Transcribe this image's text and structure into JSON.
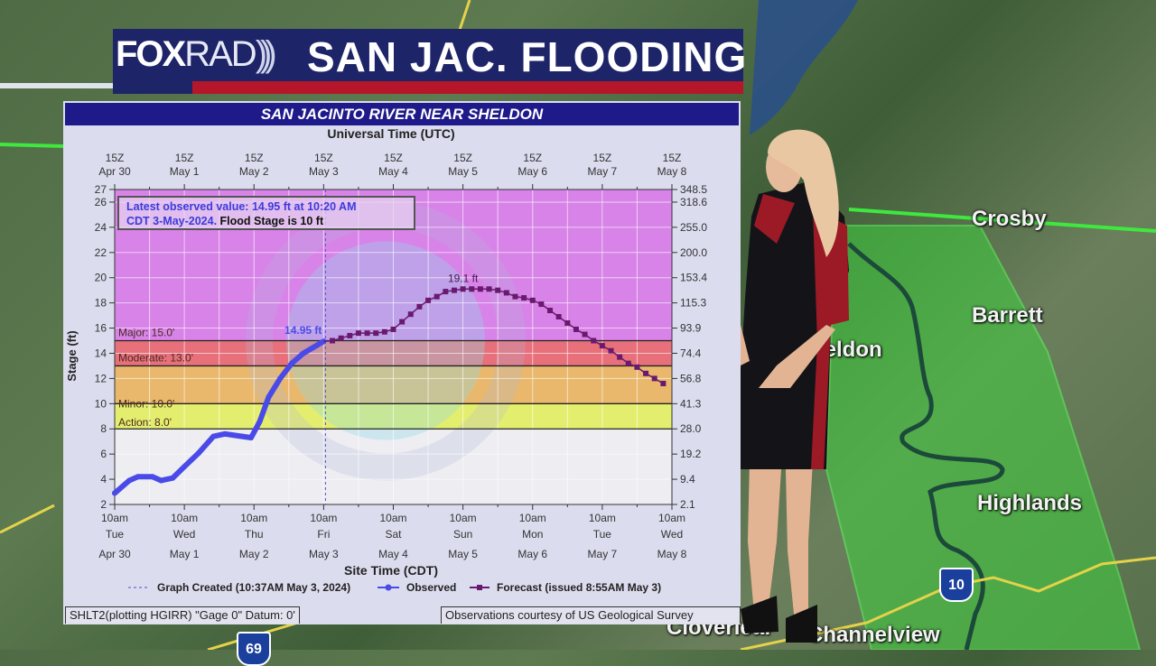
{
  "banner": {
    "logo_text": "FOXRAD",
    "logo_part1": "FOX",
    "logo_part2": "RAD",
    "title": "SAN JAC. FLOODING",
    "colors": {
      "navy": "#1d2468",
      "red": "#b5162a"
    }
  },
  "map": {
    "labels": [
      "Crosby",
      "Barrett",
      "Sheldon",
      "Highlands",
      "Channelview",
      "Cloverleaf"
    ],
    "shields": [
      {
        "icon": "interstate-shield-icon",
        "label": "10"
      },
      {
        "icon": "interstate-shield-icon",
        "label": "69"
      }
    ],
    "flood_area_color": "#3fd13f"
  },
  "chart_panel": {
    "title": "SAN JACINTO RIVER NEAR SHELDON",
    "note_line1": "Latest observed value: 14.95 ft at 10:20 AM",
    "note_line2a": "CDT 3-May-2024.",
    "note_line2b": " Flood Stage is 10 ft",
    "footer_left": "SHLT2(plotting HGIRR) \"Gage 0\" Datum: 0'",
    "footer_right": "Observations courtesy of US Geological Survey"
  },
  "chart_data": {
    "type": "line",
    "title": "SAN JACINTO RIVER NEAR SHELDON",
    "top_axis_label": "Universal Time (UTC)",
    "xlabel": "Site Time (CDT)",
    "ylabel": "Stage (ft)",
    "xlim": [
      "2024-04-30 10:00",
      "2024-05-08 10:00"
    ],
    "ylim": [
      2,
      27
    ],
    "grid": true,
    "y_ticks": [
      "2",
      "4",
      "6",
      "8",
      "10",
      "12",
      "14",
      "16",
      "18",
      "20",
      "22",
      "24",
      "26",
      "27"
    ],
    "right_ticks": [
      {
        "stage": 27,
        "label": "348.5"
      },
      {
        "stage": 26,
        "label": "318.6"
      },
      {
        "stage": 24,
        "label": "255.0"
      },
      {
        "stage": 22,
        "label": "200.0"
      },
      {
        "stage": 20,
        "label": "153.4"
      },
      {
        "stage": 18,
        "label": "115.3"
      },
      {
        "stage": 16,
        "label": "93.9"
      },
      {
        "stage": 14,
        "label": "74.4"
      },
      {
        "stage": 12,
        "label": "56.8"
      },
      {
        "stage": 10,
        "label": "41.3"
      },
      {
        "stage": 8,
        "label": "28.0"
      },
      {
        "stage": 6,
        "label": "19.2"
      },
      {
        "stage": 4,
        "label": "9.4"
      },
      {
        "stage": 2,
        "label": "2.1"
      }
    ],
    "top_ticks": [
      {
        "z": "15Z",
        "date": "Apr 30"
      },
      {
        "z": "15Z",
        "date": "May 1"
      },
      {
        "z": "15Z",
        "date": "May 2"
      },
      {
        "z": "15Z",
        "date": "May 3"
      },
      {
        "z": "15Z",
        "date": "May 4"
      },
      {
        "z": "15Z",
        "date": "May 5"
      },
      {
        "z": "15Z",
        "date": "May 6"
      },
      {
        "z": "15Z",
        "date": "May 7"
      },
      {
        "z": "15Z",
        "date": "May 8"
      }
    ],
    "bottom_ticks": [
      {
        "time": "10am",
        "day": "Tue",
        "date": "Apr 30"
      },
      {
        "time": "10am",
        "day": "Wed",
        "date": "May 1"
      },
      {
        "time": "10am",
        "day": "Thu",
        "date": "May 2"
      },
      {
        "time": "10am",
        "day": "Fri",
        "date": "May 3"
      },
      {
        "time": "10am",
        "day": "Sat",
        "date": "May 4"
      },
      {
        "time": "10am",
        "day": "Sun",
        "date": "May 5"
      },
      {
        "time": "10am",
        "day": "Mon",
        "date": "May 6"
      },
      {
        "time": "10am",
        "day": "Tue",
        "date": "May 7"
      },
      {
        "time": "10am",
        "day": "Wed",
        "date": "May 8"
      }
    ],
    "thresholds": [
      {
        "label": "Major: 15.0'",
        "value": 15.0,
        "color": "#e7707a"
      },
      {
        "label": "Moderate: 13.0'",
        "value": 13.0,
        "color": "#e9b46c"
      },
      {
        "label": "Minor: 10.0'",
        "value": 10.0,
        "color": "#e8b86a"
      },
      {
        "label": "Action: 8.0'",
        "value": 8.0,
        "color": "#e4ee6e"
      }
    ],
    "band_colors": {
      "above_major": "#d883e8",
      "major": "#e7707a",
      "moderate": "#e9b86c",
      "minor": "#e4ee6e",
      "normal": "#ededf2"
    },
    "graph_created": "2024-05-03 10:37",
    "current_label": "14.95 ft",
    "peak_label": "19.1 ft",
    "legend": {
      "created": "Graph Created (10:37AM May 3, 2024)",
      "observed": "Observed",
      "forecast": "Forecast (issued 8:55AM May 3)"
    },
    "series": [
      {
        "name": "Observed",
        "color": "#4a4ae8",
        "x": [
          "2024-04-30 10:00",
          "2024-04-30 15:00",
          "2024-04-30 18:00",
          "2024-04-30 23:00",
          "2024-05-01 02:00",
          "2024-05-01 06:00",
          "2024-05-01 10:00",
          "2024-05-01 15:00",
          "2024-05-01 20:00",
          "2024-05-02 00:00",
          "2024-05-02 06:00",
          "2024-05-02 09:00",
          "2024-05-02 12:00",
          "2024-05-02 15:00",
          "2024-05-02 19:00",
          "2024-05-02 23:00",
          "2024-05-03 03:00",
          "2024-05-03 10:00"
        ],
        "y": [
          2.9,
          3.9,
          4.2,
          4.2,
          3.9,
          4.1,
          5.0,
          6.1,
          7.4,
          7.6,
          7.4,
          7.3,
          8.6,
          10.5,
          12.0,
          13.2,
          14.0,
          14.95
        ]
      },
      {
        "name": "Forecast",
        "color": "#6a1a6e",
        "x": [
          "2024-05-03 13:00",
          "2024-05-03 16:00",
          "2024-05-03 19:00",
          "2024-05-03 22:00",
          "2024-05-04 01:00",
          "2024-05-04 04:00",
          "2024-05-04 07:00",
          "2024-05-04 10:00",
          "2024-05-04 13:00",
          "2024-05-04 16:00",
          "2024-05-04 19:00",
          "2024-05-04 22:00",
          "2024-05-05 01:00",
          "2024-05-05 04:00",
          "2024-05-05 07:00",
          "2024-05-05 10:00",
          "2024-05-05 13:00",
          "2024-05-05 16:00",
          "2024-05-05 19:00",
          "2024-05-05 22:00",
          "2024-05-06 01:00",
          "2024-05-06 04:00",
          "2024-05-06 07:00",
          "2024-05-06 10:00",
          "2024-05-06 13:00",
          "2024-05-06 16:00",
          "2024-05-06 19:00",
          "2024-05-06 22:00",
          "2024-05-07 01:00",
          "2024-05-07 04:00",
          "2024-05-07 07:00",
          "2024-05-07 10:00",
          "2024-05-07 13:00",
          "2024-05-07 16:00",
          "2024-05-07 19:00",
          "2024-05-07 22:00",
          "2024-05-08 01:00",
          "2024-05-08 04:00",
          "2024-05-08 07:00"
        ],
        "y": [
          15.0,
          15.2,
          15.4,
          15.6,
          15.6,
          15.6,
          15.7,
          15.9,
          16.5,
          17.1,
          17.7,
          18.2,
          18.5,
          18.9,
          19.0,
          19.1,
          19.1,
          19.1,
          19.1,
          19.0,
          18.8,
          18.5,
          18.4,
          18.2,
          17.9,
          17.4,
          16.9,
          16.4,
          15.9,
          15.5,
          15.0,
          14.6,
          14.2,
          13.7,
          13.2,
          12.9,
          12.4,
          12.0,
          11.6
        ]
      }
    ]
  }
}
